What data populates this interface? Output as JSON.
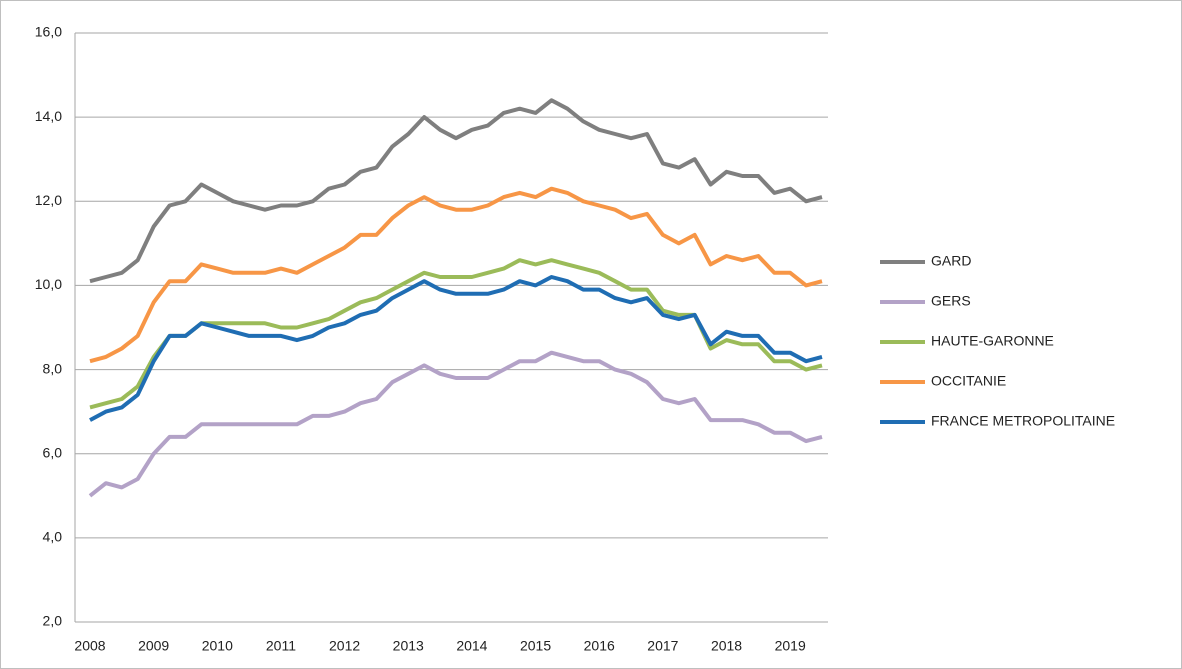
{
  "chart_data": {
    "type": "line",
    "categories": [
      "2008",
      null,
      null,
      null,
      "2009",
      null,
      null,
      null,
      "2010",
      null,
      null,
      null,
      "2011",
      null,
      null,
      null,
      "2012",
      null,
      null,
      null,
      "2013",
      null,
      null,
      null,
      "2014",
      null,
      null,
      null,
      "2015",
      null,
      null,
      null,
      "2016",
      null,
      null,
      null,
      "2017",
      null,
      null,
      null,
      "2018",
      null,
      null,
      null,
      "2019",
      null,
      null
    ],
    "series": [
      {
        "name": "GARD",
        "color": "#7f7f7f",
        "values": [
          10.1,
          10.2,
          10.3,
          10.6,
          11.4,
          11.9,
          12.0,
          12.4,
          12.2,
          12.0,
          11.9,
          11.8,
          11.9,
          11.9,
          12.0,
          12.3,
          12.4,
          12.7,
          12.8,
          13.3,
          13.6,
          14.0,
          13.7,
          13.5,
          13.7,
          13.8,
          14.1,
          14.2,
          14.1,
          14.4,
          14.2,
          13.9,
          13.7,
          13.6,
          13.5,
          13.6,
          12.9,
          12.8,
          13.0,
          12.4,
          12.7,
          12.6,
          12.6,
          12.2,
          12.3,
          12.0,
          12.1
        ]
      },
      {
        "name": "GERS",
        "color": "#b3a2c7",
        "values": [
          5.0,
          5.3,
          5.2,
          5.4,
          6.0,
          6.4,
          6.4,
          6.7,
          6.7,
          6.7,
          6.7,
          6.7,
          6.7,
          6.7,
          6.9,
          6.9,
          7.0,
          7.2,
          7.3,
          7.7,
          7.9,
          8.1,
          7.9,
          7.8,
          7.8,
          7.8,
          8.0,
          8.2,
          8.2,
          8.4,
          8.3,
          8.2,
          8.2,
          8.0,
          7.9,
          7.7,
          7.3,
          7.2,
          7.3,
          6.8,
          6.8,
          6.8,
          6.7,
          6.5,
          6.5,
          6.3,
          6.4
        ]
      },
      {
        "name": "HAUTE-GARONNE",
        "color": "#9bbb59",
        "values": [
          7.1,
          7.2,
          7.3,
          7.6,
          8.3,
          8.8,
          8.8,
          9.1,
          9.1,
          9.1,
          9.1,
          9.1,
          9.0,
          9.0,
          9.1,
          9.2,
          9.4,
          9.6,
          9.7,
          9.9,
          10.1,
          10.3,
          10.2,
          10.2,
          10.2,
          10.3,
          10.4,
          10.6,
          10.5,
          10.6,
          10.5,
          10.4,
          10.3,
          10.1,
          9.9,
          9.9,
          9.4,
          9.3,
          9.3,
          8.5,
          8.7,
          8.6,
          8.6,
          8.2,
          8.2,
          8.0,
          8.1
        ]
      },
      {
        "name": "OCCITANIE",
        "color": "#f79646",
        "values": [
          8.2,
          8.3,
          8.5,
          8.8,
          9.6,
          10.1,
          10.1,
          10.5,
          10.4,
          10.3,
          10.3,
          10.3,
          10.4,
          10.3,
          10.5,
          10.7,
          10.9,
          11.2,
          11.2,
          11.6,
          11.9,
          12.1,
          11.9,
          11.8,
          11.8,
          11.9,
          12.1,
          12.2,
          12.1,
          12.3,
          12.2,
          12.0,
          11.9,
          11.8,
          11.6,
          11.7,
          11.2,
          11.0,
          11.2,
          10.5,
          10.7,
          10.6,
          10.7,
          10.3,
          10.3,
          10.0,
          10.1
        ]
      },
      {
        "name": "FRANCE METROPOLITAINE",
        "color": "#1f6db3",
        "values": [
          6.8,
          7.0,
          7.1,
          7.4,
          8.2,
          8.8,
          8.8,
          9.1,
          9.0,
          8.9,
          8.8,
          8.8,
          8.8,
          8.7,
          8.8,
          9.0,
          9.1,
          9.3,
          9.4,
          9.7,
          9.9,
          10.1,
          9.9,
          9.8,
          9.8,
          9.8,
          9.9,
          10.1,
          10.0,
          10.2,
          10.1,
          9.9,
          9.9,
          9.7,
          9.6,
          9.7,
          9.3,
          9.2,
          9.3,
          8.6,
          8.9,
          8.8,
          8.8,
          8.4,
          8.4,
          8.2,
          8.3
        ]
      }
    ],
    "ylim": [
      2,
      16
    ],
    "yticks": [
      {
        "value": 2,
        "label": "2,0"
      },
      {
        "value": 4,
        "label": "4,0"
      },
      {
        "value": 6,
        "label": "6,0"
      },
      {
        "value": 8,
        "label": "8,0"
      },
      {
        "value": 10,
        "label": "10,0"
      },
      {
        "value": 12,
        "label": "12,0"
      },
      {
        "value": 14,
        "label": "14,0"
      },
      {
        "value": 16,
        "label": "16,0"
      }
    ],
    "grid": true,
    "legend": "right"
  }
}
